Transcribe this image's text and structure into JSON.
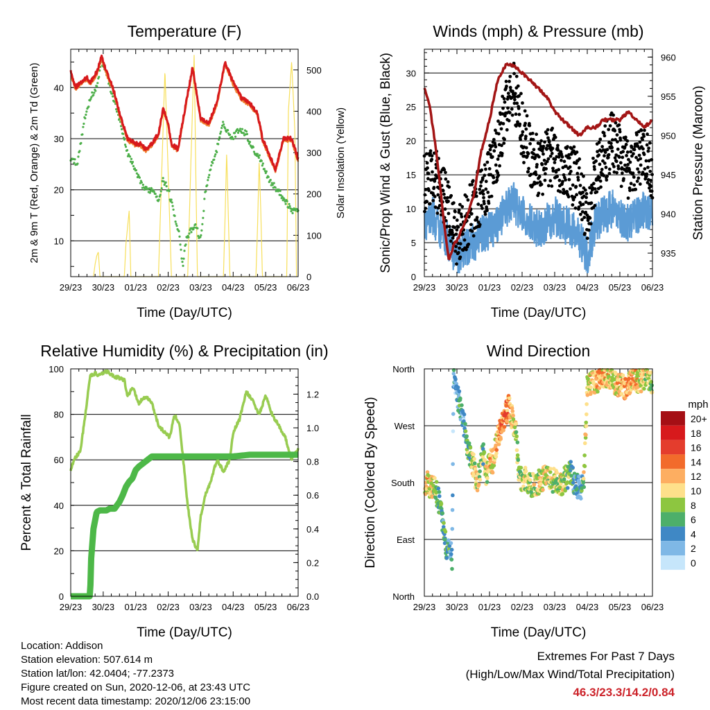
{
  "chart_data": [
    {
      "type": "line",
      "title": "Temperature (F)",
      "xlabel": "Time (Day/UTC)",
      "ylabel": "2m & 9m T (Red, Orange) & 2m Td (Green)",
      "ylabel_right": "Solar Insolation (Yellow)",
      "x_ticks": [
        "29/23",
        "30/23",
        "01/23",
        "02/23",
        "03/23",
        "04/23",
        "05/23",
        "06/23"
      ],
      "ylim": [
        3,
        47.5
      ],
      "y_ticks": [
        10,
        20,
        30,
        40
      ],
      "y2lim": [
        0,
        550
      ],
      "y2_ticks": [
        0,
        100,
        200,
        300,
        400,
        500
      ],
      "colors": {
        "t2m": "#d7191c",
        "t9m": "#f07f2f",
        "td": "#4daf4a",
        "solar": "#f7df5a"
      },
      "series": [
        {
          "name": "2m T",
          "color": "#d7191c",
          "x": [
            0,
            0.15,
            0.3,
            0.5,
            0.6,
            0.8,
            0.95,
            1.1,
            1.3,
            1.5,
            1.6,
            1.75,
            2.0,
            2.15,
            2.3,
            2.5,
            2.7,
            2.85,
            3.0,
            3.1,
            3.3,
            3.55,
            3.75,
            4.0,
            4.25,
            4.5,
            4.75,
            5.0,
            5.25,
            5.5,
            5.75,
            5.9,
            6.1,
            6.3,
            6.55,
            6.8,
            7.0
          ],
          "values": [
            43,
            40,
            41,
            42,
            41,
            43,
            46,
            43,
            40,
            35,
            33,
            30,
            29,
            29,
            28,
            29,
            31,
            36,
            33,
            29,
            28,
            37,
            44,
            34,
            33,
            37,
            45,
            41,
            38,
            37,
            35,
            30,
            27,
            24,
            30,
            30,
            26
          ]
        },
        {
          "name": "9m T",
          "color": "#f07f2f",
          "x": [
            0,
            0.15,
            0.3,
            0.5,
            0.6,
            0.8,
            0.95,
            1.1,
            1.3,
            1.5,
            1.6,
            1.75,
            2.0,
            2.15,
            2.3,
            2.5,
            2.7,
            2.85,
            3.0,
            3.1,
            3.3,
            3.55,
            3.75,
            4.0,
            4.25,
            4.5,
            4.75,
            5.0,
            5.25,
            5.5,
            5.75,
            5.9,
            6.1,
            6.3,
            6.55,
            6.8,
            7.0
          ],
          "values": [
            42.6,
            39.6,
            40.6,
            41.6,
            40.6,
            42.6,
            45.6,
            42.6,
            39.6,
            34.6,
            32.6,
            29.6,
            28.6,
            28.6,
            27.6,
            28.6,
            30.6,
            35.6,
            32.6,
            28.6,
            27.6,
            36.6,
            43.6,
            33.6,
            32.6,
            36.6,
            44.6,
            40.6,
            37.6,
            36.6,
            34.6,
            29.6,
            26.6,
            23.6,
            29.6,
            29.6,
            25.6
          ]
        },
        {
          "name": "2m Td",
          "color": "#4daf4a",
          "x": [
            0,
            0.2,
            0.4,
            0.6,
            0.8,
            0.95,
            1.1,
            1.3,
            1.5,
            1.7,
            1.9,
            2.1,
            2.3,
            2.55,
            2.7,
            2.85,
            3.0,
            3.2,
            3.35,
            3.45,
            3.55,
            3.7,
            3.85,
            4.0,
            4.15,
            4.3,
            4.5,
            4.7,
            4.95,
            5.2,
            5.4,
            5.6,
            5.85,
            6.1,
            6.35,
            6.6,
            6.8,
            7.0
          ],
          "values": [
            26,
            25,
            33,
            38,
            40,
            45,
            43,
            38,
            34,
            28,
            25,
            22,
            20,
            20,
            18,
            22,
            20,
            15,
            11,
            5,
            10,
            12,
            13,
            10,
            20,
            24,
            28,
            33,
            30,
            32,
            31,
            28,
            26,
            22,
            20,
            18,
            16,
            16
          ]
        },
        {
          "name": "Solar Insolation",
          "axis": "right",
          "color": "#f7df5a",
          "x": [
            0.7,
            0.75,
            0.8,
            0.85,
            0.9,
            1.65,
            1.7,
            1.75,
            1.8,
            1.85,
            1.9,
            2.7,
            2.8,
            2.9,
            3.0,
            3.1,
            3.6,
            3.7,
            3.8,
            3.85,
            3.9,
            4.7,
            4.75,
            4.8,
            4.85,
            4.9,
            5.7,
            5.75,
            5.8,
            5.85,
            5.9,
            6.65,
            6.7,
            6.8,
            6.9,
            6.95
          ],
          "values": [
            0,
            30,
            50,
            60,
            0,
            0,
            80,
            120,
            160,
            0,
            0,
            0,
            250,
            500,
            250,
            0,
            0,
            280,
            540,
            250,
            0,
            0,
            140,
            300,
            150,
            0,
            0,
            120,
            280,
            160,
            0,
            0,
            400,
            520,
            350,
            0
          ]
        }
      ]
    },
    {
      "type": "scatter",
      "title": "Winds (mph) & Pressure (mb)",
      "xlabel": "Time (Day/UTC)",
      "ylabel": "Sonic/Prop Wind & Gust (Blue, Black)",
      "ylabel_right": "Station Pressure (Maroon)",
      "x_ticks": [
        "29/23",
        "30/23",
        "01/23",
        "02/23",
        "03/23",
        "04/23",
        "05/23",
        "06/23"
      ],
      "ylim": [
        0,
        33.5
      ],
      "y_ticks": [
        0,
        5,
        10,
        15,
        20,
        25,
        30
      ],
      "y2lim": [
        932,
        961
      ],
      "y2_ticks": [
        935,
        940,
        945,
        950,
        955,
        960
      ],
      "colors": {
        "wind": "#5b9bd5",
        "gust": "#000000",
        "pressure": "#a31515"
      },
      "series": [
        {
          "name": "Station Pressure",
          "axis": "right",
          "color": "#a31515",
          "x": [
            0,
            0.15,
            0.3,
            0.45,
            0.6,
            0.75,
            0.9,
            1.05,
            1.25,
            1.5,
            1.75,
            2.0,
            2.25,
            2.5,
            2.75,
            3.0,
            3.25,
            3.5,
            3.75,
            4.0,
            4.25,
            4.5,
            4.75,
            5.0,
            5.25,
            5.5,
            5.75,
            6.0,
            6.25,
            6.5,
            6.75,
            7.0
          ],
          "values": [
            956,
            954,
            950,
            945,
            939,
            934,
            936,
            937,
            939,
            942,
            948,
            952,
            957,
            959,
            959,
            958,
            957,
            956,
            955,
            953,
            952,
            951,
            950,
            951,
            951,
            952,
            952,
            952,
            953,
            952,
            951,
            952
          ]
        },
        {
          "name": "Wind",
          "color": "#5b9bd5",
          "x": [
            0,
            0.25,
            0.5,
            0.75,
            1.0,
            1.25,
            1.5,
            1.75,
            2.0,
            2.25,
            2.5,
            2.75,
            3.0,
            3.25,
            3.5,
            3.75,
            4.0,
            4.25,
            4.5,
            4.75,
            5.0,
            5.25,
            5.5,
            5.75,
            6.0,
            6.25,
            6.5,
            6.75,
            7.0
          ],
          "values": [
            8,
            9,
            7,
            5,
            3,
            4,
            5,
            6,
            7,
            8,
            10,
            11,
            9,
            8,
            7,
            8,
            9,
            8,
            7,
            6,
            3,
            8,
            9,
            10,
            9,
            8,
            9,
            10,
            9
          ]
        },
        {
          "name": "Gust",
          "color": "#000000",
          "x": [
            0,
            0.25,
            0.5,
            0.75,
            1.0,
            1.25,
            1.5,
            1.75,
            2.0,
            2.25,
            2.5,
            2.75,
            3.0,
            3.25,
            3.5,
            3.75,
            4.0,
            4.25,
            4.5,
            4.75,
            5.0,
            5.25,
            5.5,
            5.75,
            6.0,
            6.25,
            6.5,
            6.75,
            7.0
          ],
          "values": [
            14,
            15,
            13,
            10,
            6,
            8,
            10,
            12,
            15,
            18,
            25,
            28,
            22,
            18,
            16,
            17,
            18,
            16,
            15,
            14,
            8,
            15,
            18,
            20,
            18,
            16,
            17,
            18,
            16
          ]
        }
      ]
    },
    {
      "type": "line",
      "title": "Relative Humidity (%) & Precipitation (in)",
      "xlabel": "Time (Day/UTC)",
      "ylabel": "Percent & Total Rainfall",
      "x_ticks": [
        "29/23",
        "30/23",
        "01/23",
        "02/23",
        "03/23",
        "04/23",
        "05/23",
        "06/23"
      ],
      "ylim": [
        0,
        100
      ],
      "y_ticks": [
        0,
        20,
        40,
        60,
        80,
        100
      ],
      "y2lim": [
        0,
        1.35
      ],
      "y2_ticks": [
        "0.0",
        "0.2",
        "0.4",
        "0.6",
        "0.8",
        "1.0",
        "1.2"
      ],
      "colors": {
        "rh": "#98cc51",
        "precip": "#4db848"
      },
      "series": [
        {
          "name": "Relative Humidity",
          "color": "#98cc51",
          "x": [
            0,
            0.1,
            0.2,
            0.3,
            0.45,
            0.6,
            0.75,
            0.9,
            1.1,
            1.3,
            1.5,
            1.65,
            1.75,
            1.9,
            2.1,
            2.3,
            2.5,
            2.7,
            2.9,
            3.05,
            3.2,
            3.35,
            3.5,
            3.6,
            3.75,
            3.9,
            4.0,
            4.15,
            4.3,
            4.5,
            4.7,
            4.9,
            5.0,
            5.2,
            5.4,
            5.6,
            5.8,
            6.0,
            6.2,
            6.4,
            6.6,
            6.8,
            7.0
          ],
          "values": [
            55,
            60,
            62,
            64,
            80,
            97,
            98,
            97,
            99,
            97,
            96,
            95,
            88,
            92,
            85,
            88,
            85,
            75,
            72,
            70,
            80,
            75,
            55,
            40,
            25,
            20,
            35,
            45,
            50,
            60,
            55,
            60,
            72,
            78,
            90,
            86,
            80,
            88,
            80,
            75,
            70,
            60,
            65
          ]
        },
        {
          "name": "Total Rainfall",
          "axis": "right",
          "color": "#4db848",
          "x": [
            0,
            0.5,
            0.6,
            0.62,
            0.7,
            0.8,
            0.9,
            1.0,
            1.1,
            1.2,
            1.35,
            1.5,
            1.6,
            1.7,
            1.8,
            1.9,
            2.0,
            2.1,
            2.3,
            2.5,
            2.7,
            3.0,
            3.5,
            4.0,
            4.5,
            5.0,
            5.5,
            6.0,
            6.5,
            7.0
          ],
          "values": [
            0,
            0,
            0,
            0.2,
            0.4,
            0.5,
            0.51,
            0.51,
            0.51,
            0.52,
            0.52,
            0.56,
            0.6,
            0.65,
            0.68,
            0.7,
            0.75,
            0.77,
            0.8,
            0.83,
            0.83,
            0.83,
            0.83,
            0.83,
            0.83,
            0.83,
            0.84,
            0.84,
            0.84,
            0.84
          ]
        }
      ]
    },
    {
      "type": "scatter",
      "title": "Wind Direction",
      "xlabel": "Time (Day/UTC)",
      "ylabel": "Direction (Colored By Speed)",
      "x_ticks": [
        "29/23",
        "30/23",
        "01/23",
        "02/23",
        "03/23",
        "04/23",
        "05/23",
        "06/23"
      ],
      "y_ticks": [
        "North",
        "East",
        "South",
        "West",
        "North"
      ],
      "ylim": [
        0,
        360
      ],
      "legend": {
        "title": "mph",
        "placement": "right",
        "labels": [
          "20+",
          "18",
          "16",
          "14",
          "12",
          "10",
          "8",
          "6",
          "4",
          "2",
          "0"
        ],
        "colors": [
          "#a50f15",
          "#d7191c",
          "#e43d2d",
          "#f26b2b",
          "#fdae61",
          "#fee08b",
          "#8dc640",
          "#4daf6a",
          "#3f88c5",
          "#7fb8e6",
          "#c6e6fb"
        ]
      },
      "series": [
        {
          "name": "Direction",
          "x": [
            0.05,
            0.15,
            0.3,
            0.4,
            0.5,
            0.6,
            0.7,
            0.8,
            0.85,
            0.9,
            0.95,
            1.0,
            1.1,
            1.2,
            1.3,
            1.4,
            1.5,
            1.6,
            1.7,
            1.8,
            1.9,
            2.0,
            2.1,
            2.2,
            2.3,
            2.4,
            2.5,
            2.6,
            2.7,
            2.8,
            2.9,
            3.0,
            3.1,
            3.3,
            3.5,
            3.7,
            3.9,
            4.1,
            4.2,
            4.3,
            4.4,
            4.5,
            4.6,
            4.7,
            4.8,
            4.9,
            5.0,
            5.2,
            5.4,
            5.6,
            5.8,
            6.0,
            6.2,
            6.4,
            6.6,
            6.8,
            7.0
          ],
          "values": [
            180,
            175,
            170,
            160,
            140,
            100,
            70,
            80,
            60,
            350,
            340,
            320,
            300,
            280,
            240,
            220,
            210,
            180,
            200,
            230,
            190,
            220,
            210,
            240,
            260,
            275,
            290,
            300,
            280,
            265,
            200,
            180,
            185,
            175,
            180,
            190,
            185,
            180,
            175,
            185,
            190,
            195,
            180,
            175,
            170,
            190,
            330,
            340,
            345,
            350,
            340,
            335,
            330,
            345,
            340,
            350,
            340
          ],
          "speed": [
            10,
            11,
            9,
            8,
            6,
            5,
            6,
            4,
            3,
            2,
            3,
            4,
            5,
            3,
            6,
            7,
            10,
            9,
            8,
            7,
            9,
            11,
            10,
            11,
            12,
            14,
            13,
            12,
            10,
            9,
            7,
            8,
            9,
            8,
            9,
            10,
            9,
            8,
            9,
            8,
            7,
            6,
            5,
            4,
            3,
            9,
            10,
            11,
            12,
            11,
            10,
            11,
            12,
            11,
            10,
            9,
            8
          ]
        }
      ]
    }
  ],
  "info": {
    "location": "Location: Addison",
    "elevation": "Station elevation: 507.614 m",
    "latlon": "Station lat/lon: 42.0404; -77.2373",
    "created": "Figure created on Sun, 2020-12-06, at 23:43 UTC",
    "recent": "Most recent data timestamp: 2020/12/06 23:15:00"
  },
  "extremes": {
    "line1": "Extremes For Past 7 Days",
    "line2": "(High/Low/Max Wind/Total Precipitation)",
    "values": "46.3/23.3/14.2/0.84"
  }
}
